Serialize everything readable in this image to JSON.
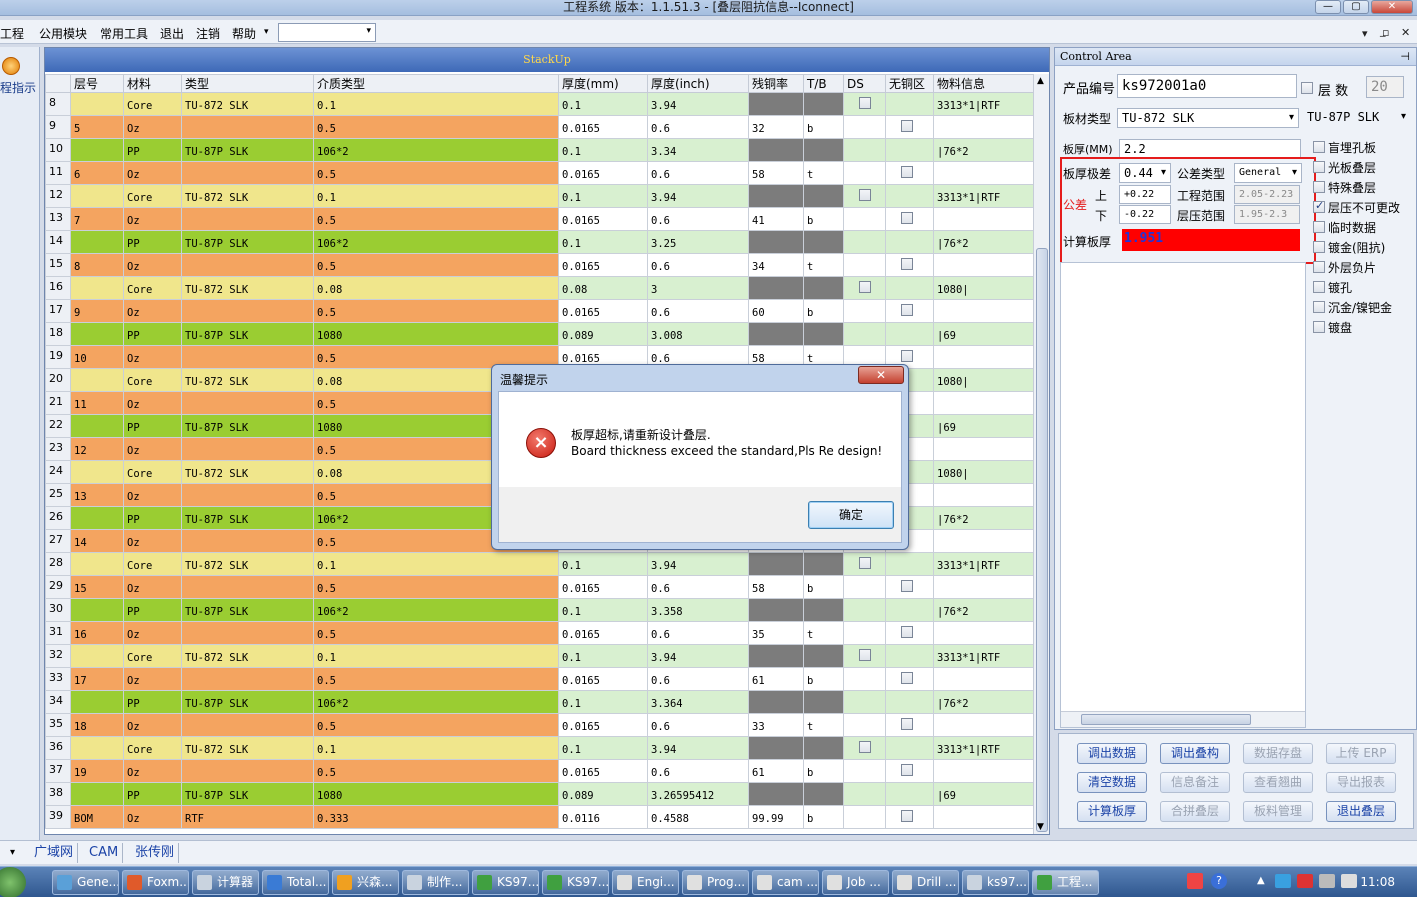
{
  "window": {
    "title": "工程系统   版本：1.1.51.3 - [叠层阻抗信息--Iconnect]",
    "min": "—",
    "max": "▢",
    "close": "✕"
  },
  "menu": {
    "items": [
      "工程",
      "公用模块",
      "常用工具",
      "退出",
      "注销",
      "帮助"
    ],
    "mdi": [
      "▾",
      "_",
      "▫",
      "✕"
    ]
  },
  "left_tab": {
    "label": "程指示"
  },
  "stack": {
    "caption": "StackUp",
    "headers": [
      "",
      "层号",
      "材料",
      "类型",
      "介质类型",
      "厚度(mm)",
      "厚度(inch)",
      "残铜率",
      "T/B",
      "DS",
      "无铜区",
      "物料信息"
    ],
    "rows": [
      {
        "n": "8",
        "layer": "",
        "mat": "Core",
        "type": "TU-872 SLK",
        "diel": "0.1",
        "mm": "0.1",
        "inch": "3.94",
        "cu": "",
        "tb": "",
        "ds": true,
        "free": false,
        "info": "3313*1|RTF",
        "k": "core"
      },
      {
        "n": "9",
        "layer": "5",
        "mat": "Oz",
        "type": "",
        "diel": "0.5",
        "mm": "0.0165",
        "inch": "0.6",
        "cu": "32",
        "tb": "b",
        "ds": false,
        "free": true,
        "info": "",
        "k": "oz"
      },
      {
        "n": "10",
        "layer": "",
        "mat": "PP",
        "type": "TU-87P SLK",
        "diel": "106*2",
        "mm": "0.1",
        "inch": "3.34",
        "cu": "",
        "tb": "",
        "ds": false,
        "free": false,
        "info": "|76*2",
        "k": "pp"
      },
      {
        "n": "11",
        "layer": "6",
        "mat": "Oz",
        "type": "",
        "diel": "0.5",
        "mm": "0.0165",
        "inch": "0.6",
        "cu": "58",
        "tb": "t",
        "ds": false,
        "free": true,
        "info": "",
        "k": "oz"
      },
      {
        "n": "12",
        "layer": "",
        "mat": "Core",
        "type": "TU-872 SLK",
        "diel": "0.1",
        "mm": "0.1",
        "inch": "3.94",
        "cu": "",
        "tb": "",
        "ds": true,
        "free": false,
        "info": "3313*1|RTF",
        "k": "core"
      },
      {
        "n": "13",
        "layer": "7",
        "mat": "Oz",
        "type": "",
        "diel": "0.5",
        "mm": "0.0165",
        "inch": "0.6",
        "cu": "41",
        "tb": "b",
        "ds": false,
        "free": true,
        "info": "",
        "k": "oz"
      },
      {
        "n": "14",
        "layer": "",
        "mat": "PP",
        "type": "TU-87P SLK",
        "diel": "106*2",
        "mm": "0.1",
        "inch": "3.25",
        "cu": "",
        "tb": "",
        "ds": false,
        "free": false,
        "info": "|76*2",
        "k": "pp"
      },
      {
        "n": "15",
        "layer": "8",
        "mat": "Oz",
        "type": "",
        "diel": "0.5",
        "mm": "0.0165",
        "inch": "0.6",
        "cu": "34",
        "tb": "t",
        "ds": false,
        "free": true,
        "info": "",
        "k": "oz"
      },
      {
        "n": "16",
        "layer": "",
        "mat": "Core",
        "type": "TU-872 SLK",
        "diel": "0.08",
        "mm": "0.08",
        "inch": "3",
        "cu": "",
        "tb": "",
        "ds": true,
        "free": false,
        "info": "1080|",
        "k": "core"
      },
      {
        "n": "17",
        "layer": "9",
        "mat": "Oz",
        "type": "",
        "diel": "0.5",
        "mm": "0.0165",
        "inch": "0.6",
        "cu": "60",
        "tb": "b",
        "ds": false,
        "free": true,
        "info": "",
        "k": "oz"
      },
      {
        "n": "18",
        "layer": "",
        "mat": "PP",
        "type": "TU-87P SLK",
        "diel": "1080",
        "mm": "0.089",
        "inch": "3.008",
        "cu": "",
        "tb": "",
        "ds": false,
        "free": false,
        "info": "|69",
        "k": "pp"
      },
      {
        "n": "19",
        "layer": "10",
        "mat": "Oz",
        "type": "",
        "diel": "0.5",
        "mm": "0.0165",
        "inch": "0.6",
        "cu": "58",
        "tb": "t",
        "ds": false,
        "free": true,
        "info": "",
        "k": "oz"
      },
      {
        "n": "20",
        "layer": "",
        "mat": "Core",
        "type": "TU-872 SLK",
        "diel": "0.08",
        "mm": "",
        "inch": "",
        "cu": "",
        "tb": "",
        "ds": false,
        "free": false,
        "info": "1080|",
        "k": "core"
      },
      {
        "n": "21",
        "layer": "11",
        "mat": "Oz",
        "type": "",
        "diel": "0.5",
        "mm": "",
        "inch": "",
        "cu": "",
        "tb": "",
        "ds": false,
        "free": false,
        "info": "",
        "k": "oz"
      },
      {
        "n": "22",
        "layer": "",
        "mat": "PP",
        "type": "TU-87P SLK",
        "diel": "1080",
        "mm": "",
        "inch": "",
        "cu": "",
        "tb": "",
        "ds": false,
        "free": false,
        "info": "|69",
        "k": "pp"
      },
      {
        "n": "23",
        "layer": "12",
        "mat": "Oz",
        "type": "",
        "diel": "0.5",
        "mm": "",
        "inch": "",
        "cu": "",
        "tb": "",
        "ds": false,
        "free": false,
        "info": "",
        "k": "oz"
      },
      {
        "n": "24",
        "layer": "",
        "mat": "Core",
        "type": "TU-872 SLK",
        "diel": "0.08",
        "mm": "",
        "inch": "",
        "cu": "",
        "tb": "",
        "ds": false,
        "free": false,
        "info": "1080|",
        "k": "core"
      },
      {
        "n": "25",
        "layer": "13",
        "mat": "Oz",
        "type": "",
        "diel": "0.5",
        "mm": "",
        "inch": "",
        "cu": "",
        "tb": "",
        "ds": false,
        "free": false,
        "info": "",
        "k": "oz"
      },
      {
        "n": "26",
        "layer": "",
        "mat": "PP",
        "type": "TU-87P SLK",
        "diel": "106*2",
        "mm": "",
        "inch": "",
        "cu": "",
        "tb": "",
        "ds": false,
        "free": false,
        "info": "|76*2",
        "k": "pp"
      },
      {
        "n": "27",
        "layer": "14",
        "mat": "Oz",
        "type": "",
        "diel": "0.5",
        "mm": "",
        "inch": "",
        "cu": "",
        "tb": "",
        "ds": false,
        "free": false,
        "info": "",
        "k": "oz"
      },
      {
        "n": "28",
        "layer": "",
        "mat": "Core",
        "type": "TU-872 SLK",
        "diel": "0.1",
        "mm": "0.1",
        "inch": "3.94",
        "cu": "",
        "tb": "",
        "ds": true,
        "free": false,
        "info": "3313*1|RTF",
        "k": "core"
      },
      {
        "n": "29",
        "layer": "15",
        "mat": "Oz",
        "type": "",
        "diel": "0.5",
        "mm": "0.0165",
        "inch": "0.6",
        "cu": "58",
        "tb": "b",
        "ds": false,
        "free": true,
        "info": "",
        "k": "oz"
      },
      {
        "n": "30",
        "layer": "",
        "mat": "PP",
        "type": "TU-87P SLK",
        "diel": "106*2",
        "mm": "0.1",
        "inch": "3.358",
        "cu": "",
        "tb": "",
        "ds": false,
        "free": false,
        "info": "|76*2",
        "k": "pp"
      },
      {
        "n": "31",
        "layer": "16",
        "mat": "Oz",
        "type": "",
        "diel": "0.5",
        "mm": "0.0165",
        "inch": "0.6",
        "cu": "35",
        "tb": "t",
        "ds": false,
        "free": true,
        "info": "",
        "k": "oz"
      },
      {
        "n": "32",
        "layer": "",
        "mat": "Core",
        "type": "TU-872 SLK",
        "diel": "0.1",
        "mm": "0.1",
        "inch": "3.94",
        "cu": "",
        "tb": "",
        "ds": true,
        "free": false,
        "info": "3313*1|RTF",
        "k": "core"
      },
      {
        "n": "33",
        "layer": "17",
        "mat": "Oz",
        "type": "",
        "diel": "0.5",
        "mm": "0.0165",
        "inch": "0.6",
        "cu": "61",
        "tb": "b",
        "ds": false,
        "free": true,
        "info": "",
        "k": "oz"
      },
      {
        "n": "34",
        "layer": "",
        "mat": "PP",
        "type": "TU-87P SLK",
        "diel": "106*2",
        "mm": "0.1",
        "inch": "3.364",
        "cu": "",
        "tb": "",
        "ds": false,
        "free": false,
        "info": "|76*2",
        "k": "pp"
      },
      {
        "n": "35",
        "layer": "18",
        "mat": "Oz",
        "type": "",
        "diel": "0.5",
        "mm": "0.0165",
        "inch": "0.6",
        "cu": "33",
        "tb": "t",
        "ds": false,
        "free": true,
        "info": "",
        "k": "oz"
      },
      {
        "n": "36",
        "layer": "",
        "mat": "Core",
        "type": "TU-872 SLK",
        "diel": "0.1",
        "mm": "0.1",
        "inch": "3.94",
        "cu": "",
        "tb": "",
        "ds": true,
        "free": false,
        "info": "3313*1|RTF",
        "k": "core"
      },
      {
        "n": "37",
        "layer": "19",
        "mat": "Oz",
        "type": "",
        "diel": "0.5",
        "mm": "0.0165",
        "inch": "0.6",
        "cu": "61",
        "tb": "b",
        "ds": false,
        "free": true,
        "info": "",
        "k": "oz"
      },
      {
        "n": "38",
        "layer": "",
        "mat": "PP",
        "type": "TU-87P SLK",
        "diel": "1080",
        "mm": "0.089",
        "inch": "3.26595412",
        "cu": "",
        "tb": "",
        "ds": false,
        "free": false,
        "info": "|69",
        "k": "pp"
      },
      {
        "n": "39",
        "layer": "BOM",
        "mat": "Oz",
        "type": "RTF",
        "diel": "0.333",
        "mm": "0.0116",
        "inch": "0.4588",
        "cu": "99.99",
        "tb": "b",
        "ds": false,
        "free": true,
        "info": "",
        "k": "bom"
      }
    ]
  },
  "control": {
    "header": "Control Area",
    "pin": "⊣",
    "product_label": "产品编号",
    "product_value": "ks972001a0",
    "layers_label": "层  数",
    "layers_value": "20",
    "board_type_label": "板材类型",
    "board_type_value": "TU-872 SLK",
    "board_type2_value": "TU-87P SLK",
    "thickness_label": "板厚(MM)",
    "thickness_value": "2.2",
    "tol_label": "板厚极差",
    "tol_value": "0.44",
    "tol_type_label": "公差类型",
    "tol_type_value": "General",
    "tol_group": "公差",
    "upper_label": "上",
    "upper_value": "+0.22",
    "lower_label": "下",
    "lower_value": "-0.22",
    "eng_range_label": "工程范围",
    "eng_range_value": "2.05-2.23",
    "press_range_label": "层压范围",
    "press_range_value": "1.95-2.3",
    "calc_label": "计算板厚",
    "calc_value": "1.951",
    "options": [
      {
        "label": "盲埋孔板",
        "checked": false
      },
      {
        "label": "光板叠层",
        "checked": false
      },
      {
        "label": "特殊叠层",
        "checked": false
      },
      {
        "label": "层压不可更改",
        "checked": true
      },
      {
        "label": "临时数据",
        "checked": false
      },
      {
        "label": "镀金(阻抗)",
        "checked": false
      },
      {
        "label": "外层负片",
        "checked": false
      },
      {
        "label": "镀孔",
        "checked": false
      },
      {
        "label": "沉金/镍钯金",
        "checked": false
      },
      {
        "label": "镀盘",
        "checked": false
      }
    ],
    "buttons": [
      {
        "label": "调出数据",
        "enabled": true
      },
      {
        "label": "调出叠构",
        "enabled": true
      },
      {
        "label": "数据存盘",
        "enabled": false
      },
      {
        "label": "上传 ERP",
        "enabled": false
      },
      {
        "label": "清空数据",
        "enabled": true
      },
      {
        "label": "信息备注",
        "enabled": false
      },
      {
        "label": "查看翘曲",
        "enabled": false
      },
      {
        "label": "导出报表",
        "enabled": false
      },
      {
        "label": "计算板厚",
        "enabled": true
      },
      {
        "label": "合拼叠层",
        "enabled": false
      },
      {
        "label": "板料管理",
        "enabled": false
      },
      {
        "label": "退出叠层",
        "enabled": true
      }
    ]
  },
  "dialog": {
    "title": "温馨提示",
    "close": "✕",
    "icon": "×",
    "line1": "板厚超标,请重新设计叠层.",
    "line2": "Board thickness exceed the standard,Pls Re design!",
    "ok": "确定"
  },
  "bottom_tabs": [
    "▾",
    "广域网",
    "CAM",
    "张传刚"
  ],
  "taskbar": {
    "items": [
      "Gene...",
      "Foxm...",
      "计算器",
      "Total...",
      "兴森...",
      "制作...",
      "KS97...",
      "KS97...",
      "Engi...",
      "Prog...",
      "cam ...",
      "Job ...",
      "Drill ...",
      "ks97...",
      "工程..."
    ],
    "clock": "11:08"
  }
}
